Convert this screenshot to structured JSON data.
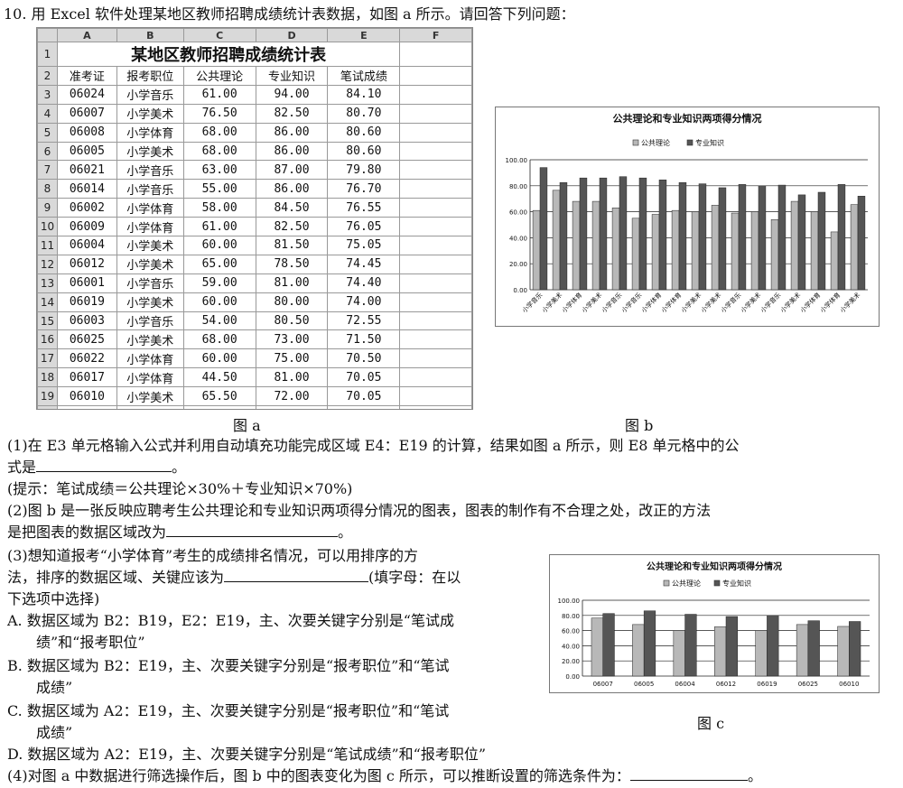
{
  "question": {
    "title": "10. 用 Excel 软件处理某地区教师招聘成绩统计表数据，如图 a 所示。请回答下列问题："
  },
  "sheet": {
    "columns": [
      "A",
      "B",
      "C",
      "D",
      "E",
      "F"
    ],
    "title": "某地区教师招聘成绩统计表",
    "headers": [
      "准考证",
      "报考职位",
      "公共理论",
      "专业知识",
      "笔试成绩"
    ],
    "rows": [
      [
        "06024",
        "小学音乐",
        "61.00",
        "94.00",
        "84.10"
      ],
      [
        "06007",
        "小学美术",
        "76.50",
        "82.50",
        "80.70"
      ],
      [
        "06008",
        "小学体育",
        "68.00",
        "86.00",
        "80.60"
      ],
      [
        "06005",
        "小学美术",
        "68.00",
        "86.00",
        "80.60"
      ],
      [
        "06021",
        "小学音乐",
        "63.00",
        "87.00",
        "79.80"
      ],
      [
        "06014",
        "小学音乐",
        "55.00",
        "86.00",
        "76.70"
      ],
      [
        "06002",
        "小学体育",
        "58.00",
        "84.50",
        "76.55"
      ],
      [
        "06009",
        "小学体育",
        "61.00",
        "82.50",
        "76.05"
      ],
      [
        "06004",
        "小学美术",
        "60.00",
        "81.50",
        "75.05"
      ],
      [
        "06012",
        "小学美术",
        "65.00",
        "78.50",
        "74.45"
      ],
      [
        "06001",
        "小学音乐",
        "59.00",
        "81.00",
        "74.40"
      ],
      [
        "06019",
        "小学美术",
        "60.00",
        "80.00",
        "74.00"
      ],
      [
        "06003",
        "小学音乐",
        "54.00",
        "80.50",
        "72.55"
      ],
      [
        "06025",
        "小学美术",
        "68.00",
        "73.00",
        "71.50"
      ],
      [
        "06022",
        "小学体育",
        "60.00",
        "75.00",
        "70.50"
      ],
      [
        "06017",
        "小学体育",
        "44.50",
        "81.00",
        "70.05"
      ],
      [
        "06010",
        "小学美术",
        "65.50",
        "72.00",
        "70.05"
      ]
    ]
  },
  "labels": {
    "fig_a": "图 a",
    "fig_b": "图 b",
    "fig_c": "图 c"
  },
  "text": {
    "q1_line1": "(1)在 E3 单元格输入公式并利用自动填充功能完成区域 E4：E19 的计算，结果如图 a 所示，则 E8 单元格中的公",
    "q1_line2_a": "式是",
    "q1_line2_b": "。",
    "hint": "(提示：笔试成绩＝公共理论×30%＋专业知识×70%)",
    "q2_line1": "(2)图 b 是一张反映应聘考生公共理论和专业知识两项得分情况的图表，图表的制作有不合理之处，改正的方法",
    "q2_line2_a": "是把图表的数据区域改为",
    "q2_line2_b": "。",
    "q3_line1": "(3)想知道报考“小学体育”考生的成绩排名情况，可以用排序的方",
    "q3_line2_a": "法，排序的数据区域、关键应该为",
    "q3_line2_b": "(填字母：在以",
    "q3_line3": "下选项中选择)",
    "optA_1": "A. 数据区域为 B2：B19，E2：E19，主、次要关键字分别是“笔试成",
    "optA_2": "绩”和“报考职位”",
    "optB_1": "B. 数据区域为 B2：E19，主、次要关键字分别是“报考职位”和“笔试",
    "optB_2": "成绩”",
    "optC_1": "C. 数据区域为 A2：E19，主、次要关键字分别是“报考职位”和“笔试",
    "optC_2": "成绩”",
    "optD": "D. 数据区域为 A2：E19，主、次要关键字分别是“笔试成绩”和“报考职位”",
    "q4_a": "(4)对图 a 中数据进行筛选操作后，图 b 中的图表变化为图 c 所示，可以推断设置的筛选条件为：",
    "q4_b": "。"
  },
  "chart_data": [
    {
      "type": "bar",
      "title": "公共理论和专业知识两项得分情况",
      "legend_position": "top",
      "categories": [
        "小学音乐",
        "小学美术",
        "小学体育",
        "小学美术",
        "小学音乐",
        "小学音乐",
        "小学体育",
        "小学体育",
        "小学美术",
        "小学美术",
        "小学音乐",
        "小学美术",
        "小学音乐",
        "小学美术",
        "小学体育",
        "小学体育",
        "小学美术"
      ],
      "series": [
        {
          "name": "公共理论",
          "color": "#b8b8b8",
          "values": [
            61.0,
            76.5,
            68.0,
            68.0,
            63.0,
            55.0,
            58.0,
            61.0,
            60.0,
            65.0,
            59.0,
            60.0,
            54.0,
            68.0,
            60.0,
            44.5,
            65.5
          ]
        },
        {
          "name": "专业知识",
          "color": "#555555",
          "values": [
            94.0,
            82.5,
            86.0,
            86.0,
            87.0,
            86.0,
            84.5,
            82.5,
            81.5,
            78.5,
            81.0,
            80.0,
            80.5,
            73.0,
            75.0,
            81.0,
            72.0
          ]
        }
      ],
      "ylim": [
        0,
        100
      ],
      "yticks": [
        "0.00",
        "20.00",
        "40.00",
        "60.00",
        "80.00",
        "100.00"
      ],
      "grid": true
    },
    {
      "type": "bar",
      "title": "公共理论和专业知识两项得分情况",
      "legend_position": "top",
      "categories": [
        "06007",
        "06005",
        "06004",
        "06012",
        "06019",
        "06025",
        "06010"
      ],
      "series": [
        {
          "name": "公共理论",
          "color": "#b8b8b8",
          "values": [
            76.5,
            68.0,
            60.0,
            65.0,
            60.0,
            68.0,
            65.5
          ]
        },
        {
          "name": "专业知识",
          "color": "#555555",
          "values": [
            82.5,
            86.0,
            81.5,
            78.5,
            80.0,
            73.0,
            72.0
          ]
        }
      ],
      "ylim": [
        0,
        100
      ],
      "yticks": [
        "0.00",
        "20.00",
        "40.00",
        "60.00",
        "80.00",
        "100.00"
      ],
      "grid": true
    }
  ]
}
